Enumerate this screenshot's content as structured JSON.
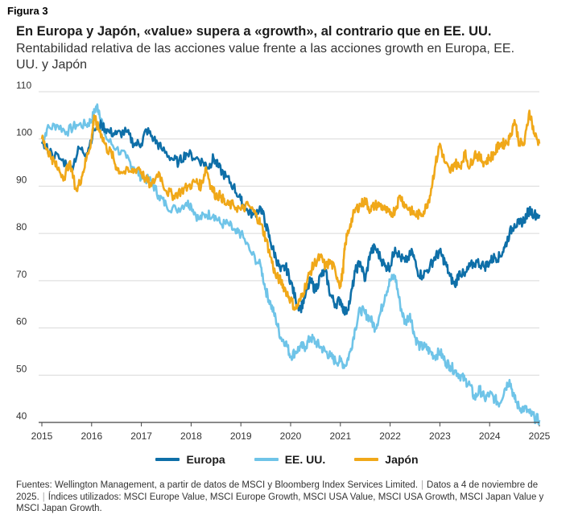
{
  "figure_label": "Figura 3",
  "chart_data": {
    "type": "line",
    "title": "En Europa y Japón, «value» supera a «growth», al contrario que en EE. UU.",
    "subtitle": "Rentabilidad relativa de las acciones value frente a las acciones growth en Europa, EE. UU. y Japón",
    "xlabel": "",
    "ylabel": "",
    "xlim": [
      2015,
      2025
    ],
    "ylim": [
      40,
      110
    ],
    "x_ticks": [
      "2015",
      "2016",
      "2017",
      "2018",
      "2019",
      "2020",
      "2021",
      "2022",
      "2023",
      "2024",
      "2025"
    ],
    "y_ticks": [
      "40",
      "50",
      "60",
      "70",
      "80",
      "90",
      "100",
      "110"
    ],
    "grid": "horizontal",
    "legend_position": "bottom-center",
    "series": [
      {
        "name": "Europa",
        "color": "#0e6fa8",
        "points": [
          [
            2015,
            99
          ],
          [
            2015.2,
            97
          ],
          [
            2015.4,
            95.5
          ],
          [
            2015.6,
            94
          ],
          [
            2015.75,
            98
          ],
          [
            2015.9,
            97
          ],
          [
            2016.05,
            102
          ],
          [
            2016.2,
            103
          ],
          [
            2016.35,
            101.5
          ],
          [
            2016.5,
            101
          ],
          [
            2016.7,
            101.5
          ],
          [
            2016.85,
            99
          ],
          [
            2017.0,
            99
          ],
          [
            2017.1,
            102
          ],
          [
            2017.25,
            100
          ],
          [
            2017.4,
            98
          ],
          [
            2017.6,
            96
          ],
          [
            2017.75,
            95
          ],
          [
            2017.9,
            97
          ],
          [
            2018.1,
            96
          ],
          [
            2018.25,
            95
          ],
          [
            2018.35,
            94
          ],
          [
            2018.45,
            96
          ],
          [
            2018.55,
            94
          ],
          [
            2018.7,
            92
          ],
          [
            2018.85,
            90
          ],
          [
            2019.0,
            87
          ],
          [
            2019.1,
            85
          ],
          [
            2019.25,
            84
          ],
          [
            2019.4,
            85.5
          ],
          [
            2019.5,
            82
          ],
          [
            2019.6,
            78
          ],
          [
            2019.7,
            75
          ],
          [
            2019.8,
            72
          ],
          [
            2019.9,
            73
          ],
          [
            2020.0,
            70
          ],
          [
            2020.1,
            66
          ],
          [
            2020.2,
            64
          ],
          [
            2020.3,
            67
          ],
          [
            2020.4,
            70
          ],
          [
            2020.5,
            68
          ],
          [
            2020.6,
            71
          ],
          [
            2020.7,
            72
          ],
          [
            2020.8,
            67
          ],
          [
            2020.9,
            65
          ],
          [
            2021.0,
            66
          ],
          [
            2021.1,
            63
          ],
          [
            2021.2,
            66
          ],
          [
            2021.3,
            72
          ],
          [
            2021.4,
            74
          ],
          [
            2021.5,
            70
          ],
          [
            2021.6,
            76
          ],
          [
            2021.7,
            77
          ],
          [
            2021.8,
            75
          ],
          [
            2021.9,
            73
          ],
          [
            2022.0,
            73
          ],
          [
            2022.1,
            77
          ],
          [
            2022.2,
            75
          ],
          [
            2022.3,
            74
          ],
          [
            2022.45,
            76
          ],
          [
            2022.55,
            72
          ],
          [
            2022.65,
            71
          ],
          [
            2022.8,
            73
          ],
          [
            2022.9,
            75
          ],
          [
            2023.0,
            76
          ],
          [
            2023.1,
            74
          ],
          [
            2023.2,
            71
          ],
          [
            2023.3,
            69
          ],
          [
            2023.4,
            72
          ],
          [
            2023.5,
            71
          ],
          [
            2023.6,
            73
          ],
          [
            2023.75,
            74
          ],
          [
            2023.9,
            73
          ],
          [
            2024.0,
            74
          ],
          [
            2024.1,
            75
          ],
          [
            2024.2,
            75
          ],
          [
            2024.3,
            77
          ],
          [
            2024.4,
            80
          ],
          [
            2024.5,
            82
          ],
          [
            2024.6,
            82
          ],
          [
            2024.7,
            83
          ],
          [
            2024.8,
            85
          ],
          [
            2024.9,
            84
          ],
          [
            2025.0,
            84
          ]
        ]
      },
      {
        "name": "EE. UU.",
        "color": "#6fc4e8",
        "points": [
          [
            2015,
            99
          ],
          [
            2015.1,
            102
          ],
          [
            2015.3,
            103
          ],
          [
            2015.5,
            101.5
          ],
          [
            2015.7,
            103
          ],
          [
            2015.9,
            103
          ],
          [
            2016.0,
            104
          ],
          [
            2016.1,
            107
          ],
          [
            2016.15,
            106
          ],
          [
            2016.3,
            100
          ],
          [
            2016.5,
            98
          ],
          [
            2016.7,
            96
          ],
          [
            2016.85,
            94
          ],
          [
            2017.0,
            92
          ],
          [
            2017.2,
            91
          ],
          [
            2017.35,
            88
          ],
          [
            2017.5,
            86
          ],
          [
            2017.7,
            85
          ],
          [
            2017.9,
            86.5
          ],
          [
            2018.0,
            86
          ],
          [
            2018.15,
            83
          ],
          [
            2018.3,
            84
          ],
          [
            2018.45,
            84
          ],
          [
            2018.6,
            82
          ],
          [
            2018.75,
            82
          ],
          [
            2018.9,
            80
          ],
          [
            2019.0,
            80
          ],
          [
            2019.2,
            76
          ],
          [
            2019.4,
            73
          ],
          [
            2019.5,
            68
          ],
          [
            2019.6,
            65
          ],
          [
            2019.7,
            62
          ],
          [
            2019.8,
            58
          ],
          [
            2019.9,
            57
          ],
          [
            2020.0,
            54
          ],
          [
            2020.1,
            55
          ],
          [
            2020.2,
            56
          ],
          [
            2020.3,
            56
          ],
          [
            2020.4,
            58
          ],
          [
            2020.5,
            57
          ],
          [
            2020.6,
            56
          ],
          [
            2020.7,
            55
          ],
          [
            2020.8,
            54
          ],
          [
            2020.9,
            53
          ],
          [
            2021.0,
            53
          ],
          [
            2021.1,
            52
          ],
          [
            2021.2,
            55
          ],
          [
            2021.3,
            60
          ],
          [
            2021.4,
            64
          ],
          [
            2021.5,
            63
          ],
          [
            2021.6,
            62
          ],
          [
            2021.7,
            60
          ],
          [
            2021.8,
            63
          ],
          [
            2021.9,
            67
          ],
          [
            2022.0,
            70
          ],
          [
            2022.1,
            71
          ],
          [
            2022.2,
            65
          ],
          [
            2022.3,
            61
          ],
          [
            2022.4,
            63
          ],
          [
            2022.5,
            58
          ],
          [
            2022.6,
            56
          ],
          [
            2022.7,
            56
          ],
          [
            2022.8,
            55
          ],
          [
            2022.9,
            54
          ],
          [
            2023.0,
            55
          ],
          [
            2023.1,
            53
          ],
          [
            2023.2,
            52
          ],
          [
            2023.3,
            51
          ],
          [
            2023.4,
            50
          ],
          [
            2023.5,
            49
          ],
          [
            2023.6,
            48
          ],
          [
            2023.7,
            45
          ],
          [
            2023.8,
            47
          ],
          [
            2023.9,
            45
          ],
          [
            2024.0,
            46
          ],
          [
            2024.1,
            45
          ],
          [
            2024.2,
            44
          ],
          [
            2024.3,
            47
          ],
          [
            2024.4,
            49
          ],
          [
            2024.5,
            45
          ],
          [
            2024.6,
            43
          ],
          [
            2024.7,
            43
          ],
          [
            2024.8,
            42
          ],
          [
            2024.9,
            41
          ],
          [
            2025.0,
            40.5
          ]
        ]
      },
      {
        "name": "Japón",
        "color": "#f0a819",
        "points": [
          [
            2015,
            100
          ],
          [
            2015.1,
            98
          ],
          [
            2015.2,
            96
          ],
          [
            2015.3,
            94
          ],
          [
            2015.45,
            92
          ],
          [
            2015.55,
            95
          ],
          [
            2015.7,
            89
          ],
          [
            2015.8,
            92
          ],
          [
            2015.9,
            96
          ],
          [
            2016.0,
            100
          ],
          [
            2016.05,
            105
          ],
          [
            2016.1,
            103
          ],
          [
            2016.2,
            101
          ],
          [
            2016.3,
            98
          ],
          [
            2016.4,
            97
          ],
          [
            2016.5,
            94
          ],
          [
            2016.6,
            93
          ],
          [
            2016.8,
            93
          ],
          [
            2016.95,
            94
          ],
          [
            2017.05,
            92
          ],
          [
            2017.2,
            90
          ],
          [
            2017.35,
            93
          ],
          [
            2017.5,
            89
          ],
          [
            2017.65,
            88
          ],
          [
            2017.8,
            89
          ],
          [
            2017.95,
            90
          ],
          [
            2018.1,
            91
          ],
          [
            2018.2,
            90
          ],
          [
            2018.3,
            94
          ],
          [
            2018.4,
            90
          ],
          [
            2018.5,
            88
          ],
          [
            2018.6,
            88
          ],
          [
            2018.7,
            86
          ],
          [
            2018.85,
            86
          ],
          [
            2019.0,
            85
          ],
          [
            2019.15,
            86
          ],
          [
            2019.3,
            84
          ],
          [
            2019.4,
            82
          ],
          [
            2019.5,
            79
          ],
          [
            2019.6,
            75
          ],
          [
            2019.7,
            71
          ],
          [
            2019.8,
            70
          ],
          [
            2019.9,
            68
          ],
          [
            2020.0,
            66
          ],
          [
            2020.1,
            64
          ],
          [
            2020.2,
            66
          ],
          [
            2020.3,
            69
          ],
          [
            2020.4,
            72
          ],
          [
            2020.5,
            74
          ],
          [
            2020.6,
            75
          ],
          [
            2020.7,
            73
          ],
          [
            2020.8,
            74
          ],
          [
            2020.9,
            72
          ],
          [
            2021.0,
            69
          ],
          [
            2021.05,
            72
          ],
          [
            2021.1,
            78
          ],
          [
            2021.2,
            82
          ],
          [
            2021.3,
            85
          ],
          [
            2021.4,
            86
          ],
          [
            2021.5,
            87
          ],
          [
            2021.6,
            85
          ],
          [
            2021.7,
            86
          ],
          [
            2021.8,
            86
          ],
          [
            2021.9,
            85
          ],
          [
            2022.0,
            84
          ],
          [
            2022.1,
            85
          ],
          [
            2022.2,
            88
          ],
          [
            2022.3,
            86
          ],
          [
            2022.4,
            85
          ],
          [
            2022.5,
            84
          ],
          [
            2022.6,
            84
          ],
          [
            2022.7,
            85
          ],
          [
            2022.8,
            88
          ],
          [
            2022.9,
            94
          ],
          [
            2023.0,
            99
          ],
          [
            2023.1,
            95
          ],
          [
            2023.2,
            93
          ],
          [
            2023.3,
            95
          ],
          [
            2023.4,
            94
          ],
          [
            2023.5,
            97
          ],
          [
            2023.6,
            94
          ],
          [
            2023.7,
            97
          ],
          [
            2023.8,
            96
          ],
          [
            2023.9,
            95
          ],
          [
            2024.0,
            96
          ],
          [
            2024.1,
            97
          ],
          [
            2024.2,
            99
          ],
          [
            2024.3,
            99
          ],
          [
            2024.4,
            100
          ],
          [
            2024.5,
            104
          ],
          [
            2024.6,
            99
          ],
          [
            2024.7,
            99
          ],
          [
            2024.8,
            106
          ],
          [
            2024.9,
            101
          ],
          [
            2025.0,
            99
          ]
        ]
      }
    ]
  },
  "footer": {
    "sources": "Fuentes: Wellington Management, a partir de datos de MSCI y Bloomberg Index Services Limited.",
    "date": "Datos a 4 de noviembre de 2025.",
    "indices": "Índices utilizados: MSCI Europe Value, MSCI Europe Growth, MSCI USA Value, MSCI USA Growth, MSCI Japan Value y MSCI Japan Growth."
  }
}
